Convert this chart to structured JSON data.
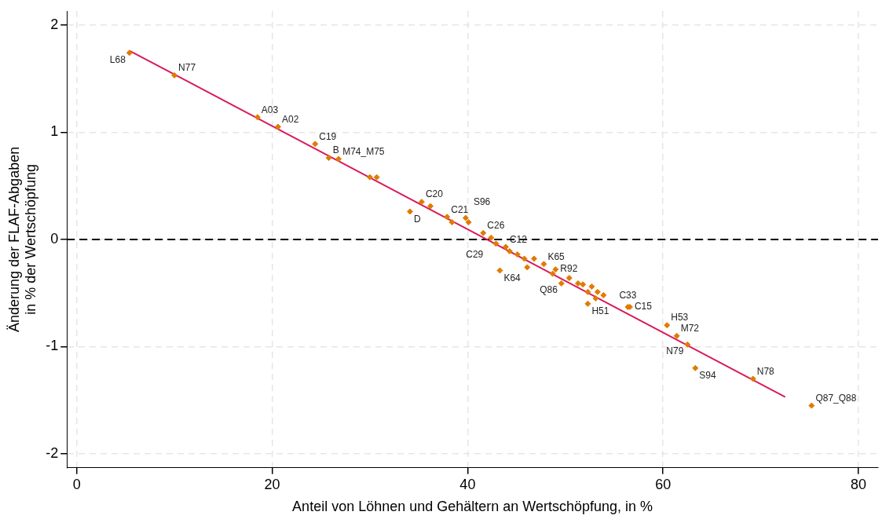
{
  "chart_data": {
    "type": "scatter",
    "xlabel": "Anteil von Löhnen und Gehältern an Wertschöpfung, in %",
    "ylabel": "Änderung der FLAF-Abgaben\nin % der Wertschöpfung",
    "xlim": [
      -1,
      82
    ],
    "ylim": [
      -2.13,
      2.13
    ],
    "xticks": [
      0,
      20,
      40,
      60,
      80
    ],
    "yticks": [
      2,
      1,
      0,
      -1,
      -2
    ],
    "grid": true,
    "ref_lines": [
      {
        "axis": "y",
        "value": 0,
        "color": "#000000",
        "line_style": "dashed"
      }
    ],
    "series": [
      {
        "type": "scatter",
        "color": "#e07b00",
        "marker": "diamond",
        "x": [
          5.4,
          10.0,
          18.5,
          20.6,
          24.4,
          25.8,
          26.8,
          30.0,
          30.7,
          35.3,
          36.2,
          37.9,
          34.1,
          38.4,
          39.8,
          40.1,
          41.6,
          42.4,
          42.9,
          43.9,
          44.3,
          45.1,
          45.8,
          46.8,
          46.1,
          47.8,
          49.0,
          48.7,
          49.6,
          50.4,
          51.3,
          51.8,
          52.3,
          52.7,
          53.3,
          53.9,
          53.1,
          52.3,
          43.3,
          56.4,
          56.6,
          60.4,
          61.4,
          62.5,
          63.3,
          69.2,
          75.2
        ],
        "values": [
          1.74,
          1.53,
          1.14,
          1.05,
          0.89,
          0.76,
          0.75,
          0.58,
          0.58,
          0.35,
          0.31,
          0.21,
          0.26,
          0.16,
          0.2,
          0.16,
          0.06,
          0.015,
          -0.04,
          -0.07,
          -0.11,
          -0.14,
          -0.18,
          -0.18,
          -0.26,
          -0.23,
          -0.28,
          -0.32,
          -0.41,
          -0.36,
          -0.41,
          -0.42,
          -0.49,
          -0.44,
          -0.49,
          -0.52,
          -0.55,
          -0.6,
          -0.29,
          -0.63,
          -0.63,
          -0.8,
          -0.9,
          -0.98,
          -1.2,
          -1.3,
          -1.55
        ],
        "value_labels": [
          "L68",
          "N77",
          "A03",
          "A02",
          "C19",
          "B",
          "M74_M75",
          null,
          null,
          "C20",
          null,
          "C21",
          "D",
          null,
          "S96",
          null,
          "C26",
          "C29",
          null,
          "C12",
          null,
          null,
          null,
          null,
          null,
          "K65",
          "R92",
          null,
          "Q86",
          null,
          null,
          null,
          null,
          null,
          null,
          null,
          null,
          "H51",
          "K64",
          "C33",
          "C15",
          "H53",
          "M72",
          "N79",
          "S94",
          "N78",
          "Q87_Q88"
        ]
      },
      {
        "type": "line",
        "color": "#d81b5a",
        "x": [
          5.4,
          72.5
        ],
        "values": [
          1.76,
          -1.47
        ]
      }
    ]
  }
}
